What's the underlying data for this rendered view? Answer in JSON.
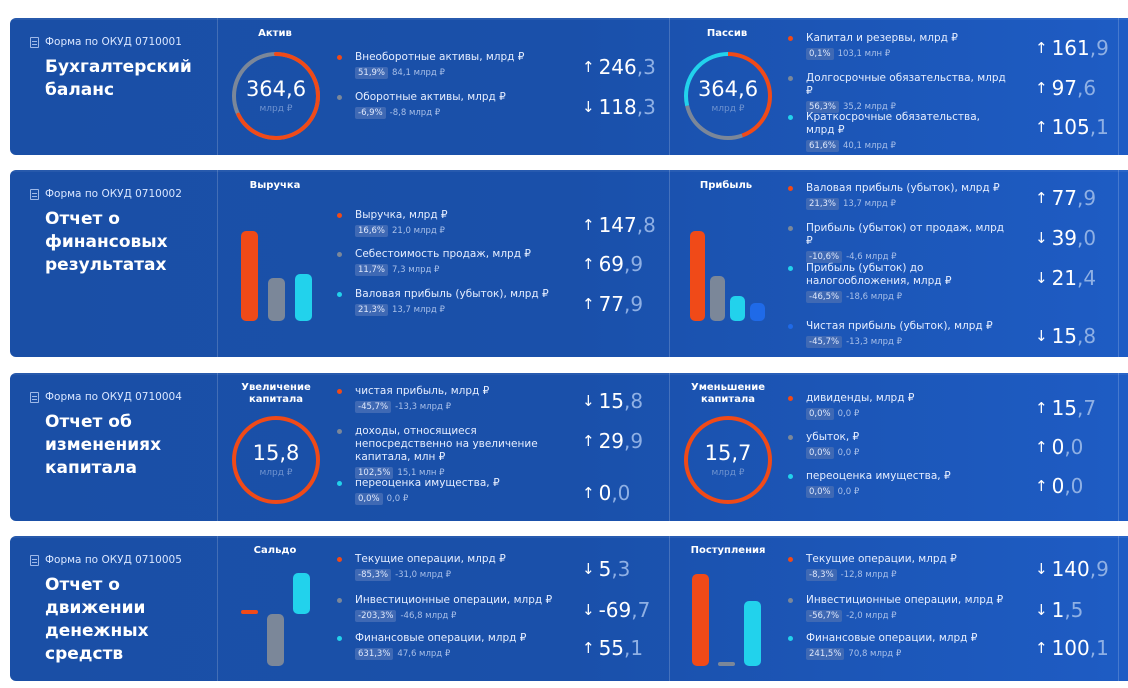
{
  "colors": {
    "orange": "#f04a18",
    "gray": "#7b8799",
    "cyan": "#22d2ec",
    "blue": "#1f6ae8"
  },
  "cards": [
    {
      "form": "Форма по ОКУД 0710001",
      "title": "Бухгалтерский баланс",
      "left": {
        "title": "Актив",
        "total": "364,6",
        "unit": "млрд ₽",
        "items": [
          {
            "label": "Внеоборотные активы, млрд ₽",
            "pct": "51,9%",
            "sub": "84,1 млрд ₽",
            "dir": "↑",
            "int": "246",
            "dec": ",3",
            "color": "orange"
          },
          {
            "label": "Оборотные активы, млрд ₽",
            "pct": "-6,9%",
            "sub": "-8,8 млрд ₽",
            "dir": "↓",
            "int": "118",
            "dec": ",3",
            "color": "gray"
          }
        ]
      },
      "right": {
        "title": "Пассив",
        "total": "364,6",
        "unit": "млрд ₽",
        "items": [
          {
            "label": "Капитал и резервы, млрд ₽",
            "pct": "0,1%",
            "sub": "103,1 млн ₽",
            "dir": "↑",
            "int": "161",
            "dec": ",9",
            "color": "orange"
          },
          {
            "label": "Долгосрочные обязательства, млрд ₽",
            "pct": "56,3%",
            "sub": "35,2 млрд ₽",
            "dir": "↑",
            "int": "97",
            "dec": ",6",
            "color": "gray"
          },
          {
            "label": "Краткосрочные обязательства, млрд ₽",
            "pct": "61,6%",
            "sub": "40,1 млрд ₽",
            "dir": "↑",
            "int": "105",
            "dec": ",1",
            "color": "cyan"
          }
        ]
      }
    },
    {
      "form": "Форма по ОКУД 0710002",
      "title": "Отчет о финансовых результатах",
      "left": {
        "title": "Выручка",
        "items": [
          {
            "label": "Выручка, млрд ₽",
            "pct": "16,6%",
            "sub": "21,0 млрд ₽",
            "dir": "↑",
            "int": "147",
            "dec": ",8",
            "color": "orange"
          },
          {
            "label": "Себестоимость продаж, млрд ₽",
            "pct": "11,7%",
            "sub": "7,3 млрд ₽",
            "dir": "↑",
            "int": "69",
            "dec": ",9",
            "color": "gray"
          },
          {
            "label": "Валовая прибыль (убыток), млрд ₽",
            "pct": "21,3%",
            "sub": "13,7 млрд ₽",
            "dir": "↑",
            "int": "77",
            "dec": ",9",
            "color": "cyan"
          }
        ]
      },
      "right": {
        "title": "Прибыль",
        "items": [
          {
            "label": "Валовая прибыль (убыток), млрд ₽",
            "pct": "21,3%",
            "sub": "13,7 млрд ₽",
            "dir": "↑",
            "int": "77",
            "dec": ",9",
            "color": "orange"
          },
          {
            "label": "Прибыль (убыток) от продаж, млрд ₽",
            "pct": "-10,6%",
            "sub": "-4,6 млрд ₽",
            "dir": "↓",
            "int": "39",
            "dec": ",0",
            "color": "gray"
          },
          {
            "label": "Прибыль (убыток) до налогообложения, млрд ₽",
            "pct": "-46,5%",
            "sub": "-18,6 млрд ₽",
            "dir": "↓",
            "int": "21",
            "dec": ",4",
            "color": "cyan"
          },
          {
            "label": "Чистая прибыль (убыток), млрд ₽",
            "pct": "-45,7%",
            "sub": "-13,3 млрд ₽",
            "dir": "↓",
            "int": "15",
            "dec": ",8",
            "color": "blue"
          }
        ]
      }
    },
    {
      "form": "Форма по ОКУД 0710004",
      "title": "Отчет об изменениях капитала",
      "left": {
        "title": "Увеличение капитала",
        "total": "15,8",
        "unit": "млрд ₽",
        "items": [
          {
            "label": "чистая прибыль, млрд ₽",
            "pct": "-45,7%",
            "sub": "-13,3 млрд ₽",
            "dir": "↓",
            "int": "15",
            "dec": ",8",
            "color": "orange"
          },
          {
            "label": "доходы, относящиеся непосредственно на увеличение капитала, млн ₽",
            "pct": "102,5%",
            "sub": "15,1 млн ₽",
            "dir": "↑",
            "int": "29",
            "dec": ",9",
            "color": "gray"
          },
          {
            "label": "переоценка имущества, ₽",
            "pct": "0,0%",
            "sub": "0,0 ₽",
            "dir": "↑",
            "int": "0",
            "dec": ",0",
            "color": "cyan"
          }
        ]
      },
      "right": {
        "title": "Уменьшение капитала",
        "total": "15,7",
        "unit": "млрд ₽",
        "items": [
          {
            "label": "дивиденды, млрд ₽",
            "pct": "0,0%",
            "sub": "0,0 ₽",
            "dir": "↑",
            "int": "15",
            "dec": ",7",
            "color": "orange"
          },
          {
            "label": "убыток, ₽",
            "pct": "0,0%",
            "sub": "0,0 ₽",
            "dir": "↑",
            "int": "0",
            "dec": ",0",
            "color": "gray"
          },
          {
            "label": "переоценка имущества, ₽",
            "pct": "0,0%",
            "sub": "0,0 ₽",
            "dir": "↑",
            "int": "0",
            "dec": ",0",
            "color": "cyan"
          }
        ]
      }
    },
    {
      "form": "Форма по ОКУД 0710005",
      "title": "Отчет о движении денежных средств",
      "left": {
        "title": "Сальдо",
        "items": [
          {
            "label": "Текущие операции, млрд ₽",
            "pct": "-85,3%",
            "sub": "-31,0 млрд ₽",
            "dir": "↓",
            "int": "5",
            "dec": ",3",
            "color": "orange"
          },
          {
            "label": "Инвестиционные операции, млрд ₽",
            "pct": "-203,3%",
            "sub": "-46,8 млрд ₽",
            "dir": "↓",
            "int": "-69",
            "dec": ",7",
            "color": "gray"
          },
          {
            "label": "Финансовые операции, млрд ₽",
            "pct": "631,3%",
            "sub": "47,6 млрд ₽",
            "dir": "↑",
            "int": "55",
            "dec": ",1",
            "color": "cyan"
          }
        ]
      },
      "right": {
        "title": "Поступления",
        "items": [
          {
            "label": "Текущие операции, млрд ₽",
            "pct": "-8,3%",
            "sub": "-12,8 млрд ₽",
            "dir": "↓",
            "int": "140",
            "dec": ",9",
            "color": "orange"
          },
          {
            "label": "Инвестиционные операции, млрд ₽",
            "pct": "-56,7%",
            "sub": "-2,0 млрд ₽",
            "dir": "↓",
            "int": "1",
            "dec": ",5",
            "color": "gray"
          },
          {
            "label": "Финансовые операции, млрд ₽",
            "pct": "241,5%",
            "sub": "70,8 млрд ₽",
            "dir": "↑",
            "int": "100",
            "dec": ",1",
            "color": "cyan"
          }
        ]
      }
    }
  ],
  "charts": {
    "revenue": {
      "values": [
        147.8,
        69.9,
        77.9
      ]
    },
    "profit": {
      "values": [
        77.9,
        39.0,
        21.4,
        15.8
      ]
    },
    "saldo": {
      "values": [
        5.3,
        -69.7,
        55.1
      ]
    },
    "receipts": {
      "values": [
        140.9,
        1.5,
        100.1
      ]
    },
    "asset_ring": {
      "shares": [
        246.3,
        118.3
      ]
    },
    "liab_ring": {
      "shares": [
        161.9,
        97.6,
        105.1
      ]
    },
    "cap_inc_ring": {
      "shares": [
        15.8,
        2.99e-05,
        0
      ]
    },
    "cap_dec_ring": {
      "shares": [
        15.7,
        0,
        0
      ]
    }
  }
}
